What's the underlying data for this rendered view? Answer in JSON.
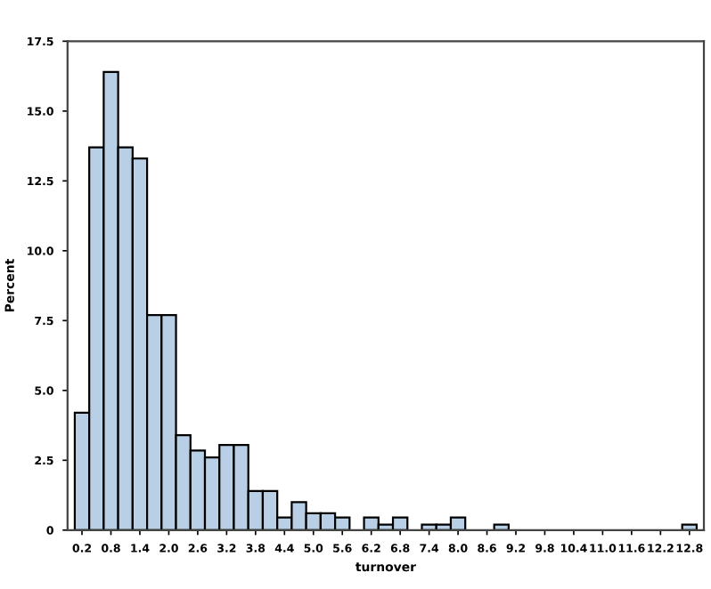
{
  "chart_data": {
    "type": "histogram",
    "xlabel": "turnover",
    "ylabel": "Percent",
    "color": "#b9cfe6",
    "bins": [
      0.05,
      0.35,
      0.65,
      0.95,
      1.25,
      1.55,
      1.85,
      2.15,
      2.45,
      2.75,
      3.05,
      3.35,
      3.65,
      3.95,
      4.25,
      4.55,
      4.85,
      5.15,
      5.45,
      5.75,
      6.05,
      6.35,
      6.65,
      6.95,
      7.25,
      7.55,
      7.85,
      8.15,
      8.45,
      8.75,
      9.05,
      9.35,
      9.65,
      9.95,
      10.25,
      10.55,
      10.85,
      11.15,
      11.45,
      11.75,
      12.05,
      12.35,
      12.65,
      12.95
    ],
    "values": [
      4.2,
      13.7,
      16.4,
      13.7,
      13.3,
      7.7,
      7.7,
      3.4,
      2.85,
      2.6,
      3.05,
      3.05,
      1.4,
      1.4,
      0.45,
      1.0,
      0.6,
      0.6,
      0.45,
      0,
      0.45,
      0.2,
      0.45,
      0,
      0.2,
      0.2,
      0.45,
      0,
      0,
      0.2,
      0,
      0,
      0,
      0,
      0,
      0,
      0,
      0,
      0,
      0,
      0,
      0,
      0.2
    ],
    "xlim": [
      -0.1,
      13.1
    ],
    "ylim": [
      0,
      17.5
    ],
    "xticks": [
      0.2,
      0.8,
      1.4,
      {
        "value": 2,
        "label": "2.0"
      },
      2.6,
      3.2,
      3.8,
      4.4,
      {
        "value": 5,
        "label": "5.0"
      },
      5.6,
      6.2,
      6.8,
      7.4,
      {
        "value": 8,
        "label": "8.0"
      },
      8.6,
      9.2,
      9.8,
      10.4,
      {
        "value": 11,
        "label": "11.0"
      },
      11.6,
      12.2,
      12.8
    ],
    "yticks": [
      0,
      2.5,
      {
        "value": 5,
        "label": "5.0"
      },
      7.5,
      {
        "value": 10,
        "label": "10.0"
      },
      12.5,
      {
        "value": 15,
        "label": "15.0"
      },
      17.5
    ],
    "grid": false
  }
}
